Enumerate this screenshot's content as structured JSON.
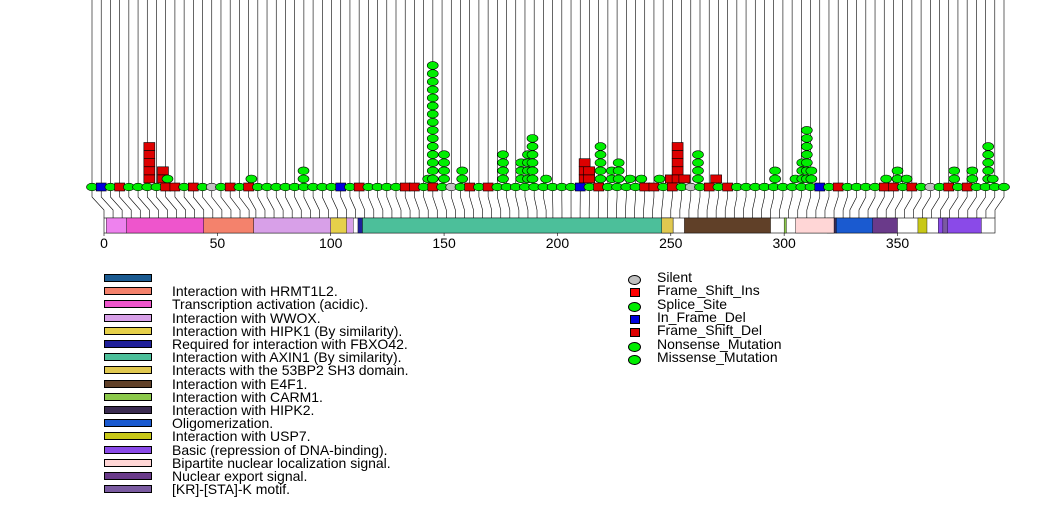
{
  "chart_data": {
    "type": "lollipop",
    "protein_length": 393,
    "xaxis": {
      "ticks": [
        0,
        50,
        100,
        150,
        200,
        250,
        300,
        350
      ]
    },
    "domains": [
      {
        "name": "Interaction with HRMT1L2.",
        "start": 1,
        "end": 10,
        "color": "#ee82ee"
      },
      {
        "name": "Transcription activation (acidic).",
        "start": 10,
        "end": 44,
        "color": "#ee55cc"
      },
      {
        "name": "Interaction with HRMT1L2.",
        "start": 44,
        "end": 66,
        "color": "#f4826c"
      },
      {
        "name": "Interaction with WWOX.",
        "start": 66,
        "end": 110,
        "color": "#d8a0e8"
      },
      {
        "name": "Interaction with HIPK1 (By similarity).",
        "start": 100,
        "end": 107,
        "color": "#e6d04a"
      },
      {
        "name": "Required for interaction with FBXO42.",
        "start": 112,
        "end": 114,
        "color": "#20209a"
      },
      {
        "name": "Interaction with AXIN1 (By similarity).",
        "start": 114,
        "end": 251,
        "color": "#4cbf9a"
      },
      {
        "name": "Interacts with the 53BP2 SH3 domain.",
        "start": 246,
        "end": 251,
        "color": "#e0c850"
      },
      {
        "name": "Interaction with E4F1.",
        "start": 256,
        "end": 294,
        "color": "#604028"
      },
      {
        "name": "Interaction with CARM1.",
        "start": 300,
        "end": 301,
        "color": "#8bc84a"
      },
      {
        "name": "Interaction with HIPK2.",
        "start": 319,
        "end": 323,
        "color": "#3a2a50"
      },
      {
        "name": "Oligomerization.",
        "start": 323,
        "end": 345,
        "color": "#1a5ad0"
      },
      {
        "name": "Interaction with USP7.",
        "start": 359,
        "end": 363,
        "color": "#c8c818"
      },
      {
        "name": "Basic (repression of DNA-binding).",
        "start": 368,
        "end": 387,
        "color": "#8a4ae8"
      },
      {
        "name": "Bipartite nuclear localization signal.",
        "start": 305,
        "end": 322,
        "color": "#ffd6d6"
      },
      {
        "name": "Nuclear export signal.",
        "start": 339,
        "end": 350,
        "color": "#6a3a8a"
      },
      {
        "name": "[KR]-[STA]-K motif.",
        "start": 370,
        "end": 372,
        "color": "#7a5aa0"
      }
    ],
    "domain_legend": [
      {
        "label": "",
        "color": "#1a5a90"
      },
      {
        "label": "Interaction with HRMT1L2.",
        "color": "#f4826c"
      },
      {
        "label": "Transcription activation (acidic).",
        "color": "#ee55cc"
      },
      {
        "label": "Interaction with WWOX.",
        "color": "#d8a0e8"
      },
      {
        "label": "Interaction with HIPK1 (By similarity).",
        "color": "#e6d04a"
      },
      {
        "label": "Required for interaction with FBXO42.",
        "color": "#20209a"
      },
      {
        "label": "Interaction with AXIN1 (By similarity).",
        "color": "#4cbf9a"
      },
      {
        "label": "Interacts with the 53BP2 SH3 domain.",
        "color": "#e0c850"
      },
      {
        "label": "Interaction with E4F1.",
        "color": "#604028"
      },
      {
        "label": "Interaction with CARM1.",
        "color": "#8bc84a"
      },
      {
        "label": "Interaction with HIPK2.",
        "color": "#3a2a50"
      },
      {
        "label": "Oligomerization.",
        "color": "#1a5ad0"
      },
      {
        "label": "Interaction with USP7.",
        "color": "#c8c818"
      },
      {
        "label": "Basic (repression of DNA-binding).",
        "color": "#8a4ae8"
      },
      {
        "label": "Bipartite nuclear localization signal.",
        "color": "#ffd6d6"
      },
      {
        "label": "Nuclear export signal.",
        "color": "#6a3a8a"
      },
      {
        "label": "[KR]-[STA]-K motif.",
        "color": "#7a5aa0"
      }
    ],
    "mutation_legend": [
      {
        "label": "Silent",
        "shape": "ellipse",
        "color": "#c0c0c0"
      },
      {
        "label": "Frame_Shift_Ins",
        "shape": "square",
        "color": "#ff0000"
      },
      {
        "label": "Splice_Site",
        "shape": "ellipse",
        "color": "#00ee00"
      },
      {
        "label": "In_Frame_Del",
        "shape": "square",
        "color": "#0000dd"
      },
      {
        "label": "Frame_Shift_Del",
        "shape": "square",
        "color": "#dd0000"
      },
      {
        "label": "Nonsense_Mutation",
        "shape": "ellipse",
        "color": "#00ee00"
      },
      {
        "label": "Missense_Mutation",
        "shape": "ellipse",
        "color": "#00ee00"
      }
    ],
    "mutations": [
      {
        "position": 20,
        "type": "Frame_Shift_Del",
        "count": 5
      },
      {
        "position": 26,
        "type": "Frame_Shift_Del",
        "count": 2
      },
      {
        "position": 28,
        "type": "Missense_Mutation",
        "count": 1
      },
      {
        "position": 65,
        "type": "Missense_Mutation",
        "count": 1
      },
      {
        "position": 88,
        "type": "Missense_Mutation",
        "count": 2
      },
      {
        "position": 143,
        "type": "Missense_Mutation",
        "count": 1
      },
      {
        "position": 145,
        "type": "Missense_Mutation",
        "count": 15
      },
      {
        "position": 150,
        "type": "Missense_Mutation",
        "count": 4
      },
      {
        "position": 158,
        "type": "Missense_Mutation",
        "count": 2
      },
      {
        "position": 176,
        "type": "Missense_Mutation",
        "count": 4
      },
      {
        "position": 184,
        "type": "Missense_Mutation",
        "count": 3
      },
      {
        "position": 187,
        "type": "Missense_Mutation",
        "count": 4
      },
      {
        "position": 189,
        "type": "Missense_Mutation",
        "count": 6
      },
      {
        "position": 195,
        "type": "Missense_Mutation",
        "count": 1
      },
      {
        "position": 212,
        "type": "Frame_Shift_Del",
        "count": 3
      },
      {
        "position": 214,
        "type": "Frame_Shift_Del",
        "count": 2
      },
      {
        "position": 219,
        "type": "Missense_Mutation",
        "count": 5
      },
      {
        "position": 224,
        "type": "Missense_Mutation",
        "count": 2
      },
      {
        "position": 227,
        "type": "Missense_Mutation",
        "count": 3
      },
      {
        "position": 232,
        "type": "Missense_Mutation",
        "count": 1
      },
      {
        "position": 237,
        "type": "Missense_Mutation",
        "count": 1
      },
      {
        "position": 245,
        "type": "Missense_Mutation",
        "count": 1
      },
      {
        "position": 250,
        "type": "Frame_Shift_Del",
        "count": 1
      },
      {
        "position": 253,
        "type": "Frame_Shift_Del",
        "count": 5
      },
      {
        "position": 256,
        "type": "Frame_Shift_Del",
        "count": 1
      },
      {
        "position": 262,
        "type": "Missense_Mutation",
        "count": 4
      },
      {
        "position": 270,
        "type": "Frame_Shift_Del",
        "count": 1
      },
      {
        "position": 296,
        "type": "Missense_Mutation",
        "count": 2
      },
      {
        "position": 305,
        "type": "Missense_Mutation",
        "count": 1
      },
      {
        "position": 308,
        "type": "Missense_Mutation",
        "count": 3
      },
      {
        "position": 310,
        "type": "Missense_Mutation",
        "count": 7
      },
      {
        "position": 312,
        "type": "Missense_Mutation",
        "count": 2
      },
      {
        "position": 345,
        "type": "Missense_Mutation",
        "count": 1
      },
      {
        "position": 350,
        "type": "Missense_Mutation",
        "count": 2
      },
      {
        "position": 354,
        "type": "Missense_Mutation",
        "count": 1
      },
      {
        "position": 375,
        "type": "Missense_Mutation",
        "count": 2
      },
      {
        "position": 383,
        "type": "Missense_Mutation",
        "count": 2
      },
      {
        "position": 390,
        "type": "Missense_Mutation",
        "count": 5
      },
      {
        "position": 392,
        "type": "Missense_Mutation",
        "count": 1
      }
    ]
  }
}
